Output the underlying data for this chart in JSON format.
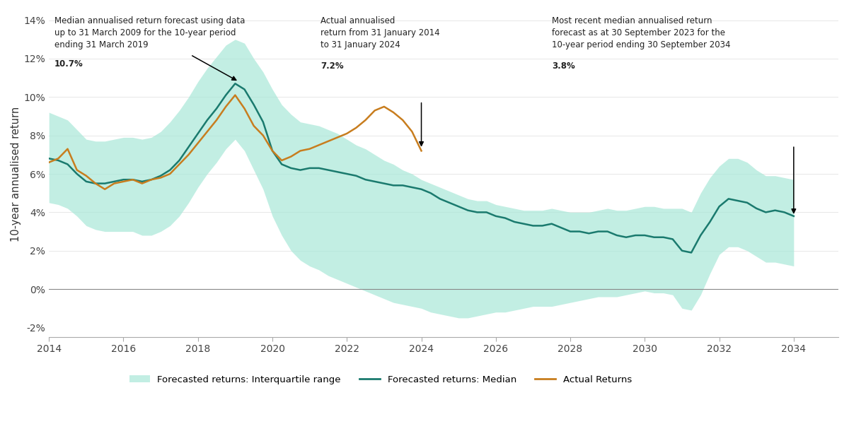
{
  "ylabel": "10-year annualised return",
  "ylim": [
    -0.025,
    0.145
  ],
  "yticks": [
    -0.02,
    0.0,
    0.02,
    0.04,
    0.06,
    0.08,
    0.1,
    0.12,
    0.14
  ],
  "ytick_labels": [
    "-2%",
    "0%",
    "2%",
    "4%",
    "6%",
    "8%",
    "10%",
    "12%",
    "14%"
  ],
  "xlim": [
    2014.0,
    2035.2
  ],
  "xticks": [
    2014,
    2016,
    2018,
    2020,
    2022,
    2024,
    2026,
    2028,
    2030,
    2032,
    2034
  ],
  "background_color": "#ffffff",
  "shading_color": "#a8e8d8",
  "median_color": "#1a7a6e",
  "actual_color": "#c87d1e",
  "legend_labels": [
    "Forecasted returns: Interquartile range",
    "Forecasted returns: Median",
    "Actual Returns"
  ],
  "median_x": [
    2014.0,
    2014.25,
    2014.5,
    2014.75,
    2015.0,
    2015.25,
    2015.5,
    2015.75,
    2016.0,
    2016.25,
    2016.5,
    2016.75,
    2017.0,
    2017.25,
    2017.5,
    2017.75,
    2018.0,
    2018.25,
    2018.5,
    2018.75,
    2019.0,
    2019.25,
    2019.5,
    2019.75,
    2020.0,
    2020.25,
    2020.5,
    2020.75,
    2021.0,
    2021.25,
    2021.5,
    2021.75,
    2022.0,
    2022.25,
    2022.5,
    2022.75,
    2023.0,
    2023.25,
    2023.5,
    2023.75,
    2024.0,
    2024.25,
    2024.5,
    2024.75,
    2025.0,
    2025.25,
    2025.5,
    2025.75,
    2026.0,
    2026.25,
    2026.5,
    2026.75,
    2027.0,
    2027.25,
    2027.5,
    2027.75,
    2028.0,
    2028.25,
    2028.5,
    2028.75,
    2029.0,
    2029.25,
    2029.5,
    2029.75,
    2030.0,
    2030.25,
    2030.5,
    2030.75,
    2031.0,
    2031.25,
    2031.5,
    2031.75,
    2032.0,
    2032.25,
    2032.5,
    2032.75,
    2033.0,
    2033.25,
    2033.5,
    2033.75,
    2034.0
  ],
  "median_y": [
    0.068,
    0.067,
    0.065,
    0.06,
    0.056,
    0.055,
    0.055,
    0.056,
    0.057,
    0.057,
    0.056,
    0.057,
    0.059,
    0.062,
    0.067,
    0.074,
    0.081,
    0.088,
    0.094,
    0.101,
    0.107,
    0.104,
    0.096,
    0.087,
    0.072,
    0.065,
    0.063,
    0.062,
    0.063,
    0.063,
    0.062,
    0.061,
    0.06,
    0.059,
    0.057,
    0.056,
    0.055,
    0.054,
    0.054,
    0.053,
    0.052,
    0.05,
    0.047,
    0.045,
    0.043,
    0.041,
    0.04,
    0.04,
    0.038,
    0.037,
    0.035,
    0.034,
    0.033,
    0.033,
    0.034,
    0.032,
    0.03,
    0.03,
    0.029,
    0.03,
    0.03,
    0.028,
    0.027,
    0.028,
    0.028,
    0.027,
    0.027,
    0.026,
    0.02,
    0.019,
    0.028,
    0.035,
    0.043,
    0.047,
    0.046,
    0.045,
    0.042,
    0.04,
    0.041,
    0.04,
    0.038
  ],
  "lower_y": [
    0.045,
    0.044,
    0.042,
    0.038,
    0.033,
    0.031,
    0.03,
    0.03,
    0.03,
    0.03,
    0.028,
    0.028,
    0.03,
    0.033,
    0.038,
    0.045,
    0.053,
    0.06,
    0.066,
    0.073,
    0.078,
    0.072,
    0.062,
    0.052,
    0.038,
    0.028,
    0.02,
    0.015,
    0.012,
    0.01,
    0.007,
    0.005,
    0.003,
    0.001,
    -0.001,
    -0.003,
    -0.005,
    -0.007,
    -0.008,
    -0.009,
    -0.01,
    -0.012,
    -0.013,
    -0.014,
    -0.015,
    -0.015,
    -0.014,
    -0.013,
    -0.012,
    -0.012,
    -0.011,
    -0.01,
    -0.009,
    -0.009,
    -0.009,
    -0.008,
    -0.007,
    -0.006,
    -0.005,
    -0.004,
    -0.004,
    -0.004,
    -0.003,
    -0.002,
    -0.001,
    -0.002,
    -0.002,
    -0.003,
    -0.01,
    -0.011,
    -0.003,
    0.008,
    0.018,
    0.022,
    0.022,
    0.02,
    0.017,
    0.014,
    0.014,
    0.013,
    0.012
  ],
  "upper_y": [
    0.092,
    0.09,
    0.088,
    0.083,
    0.078,
    0.077,
    0.077,
    0.078,
    0.079,
    0.079,
    0.078,
    0.079,
    0.082,
    0.087,
    0.093,
    0.1,
    0.108,
    0.115,
    0.121,
    0.127,
    0.13,
    0.128,
    0.12,
    0.113,
    0.104,
    0.096,
    0.091,
    0.087,
    0.086,
    0.085,
    0.083,
    0.081,
    0.078,
    0.075,
    0.073,
    0.07,
    0.067,
    0.065,
    0.062,
    0.06,
    0.057,
    0.055,
    0.053,
    0.051,
    0.049,
    0.047,
    0.046,
    0.046,
    0.044,
    0.043,
    0.042,
    0.041,
    0.041,
    0.041,
    0.042,
    0.041,
    0.04,
    0.04,
    0.04,
    0.041,
    0.042,
    0.041,
    0.041,
    0.042,
    0.043,
    0.043,
    0.042,
    0.042,
    0.042,
    0.04,
    0.05,
    0.058,
    0.064,
    0.068,
    0.068,
    0.066,
    0.062,
    0.059,
    0.059,
    0.058,
    0.057
  ],
  "actual_x": [
    2014.0,
    2014.25,
    2014.5,
    2014.75,
    2015.0,
    2015.25,
    2015.5,
    2015.75,
    2016.0,
    2016.25,
    2016.5,
    2016.75,
    2017.0,
    2017.25,
    2017.5,
    2017.75,
    2018.0,
    2018.25,
    2018.5,
    2018.75,
    2019.0,
    2019.25,
    2019.5,
    2019.75,
    2020.0,
    2020.25,
    2020.5,
    2020.75,
    2021.0,
    2021.25,
    2021.5,
    2021.75,
    2022.0,
    2022.25,
    2022.5,
    2022.75,
    2023.0,
    2023.25,
    2023.5,
    2023.75,
    2024.0
  ],
  "actual_y": [
    0.066,
    0.068,
    0.073,
    0.062,
    0.059,
    0.055,
    0.052,
    0.055,
    0.056,
    0.057,
    0.055,
    0.057,
    0.058,
    0.06,
    0.065,
    0.07,
    0.076,
    0.082,
    0.088,
    0.095,
    0.101,
    0.094,
    0.085,
    0.08,
    0.072,
    0.067,
    0.069,
    0.072,
    0.073,
    0.075,
    0.077,
    0.079,
    0.081,
    0.084,
    0.088,
    0.093,
    0.095,
    0.092,
    0.088,
    0.082,
    0.072
  ]
}
